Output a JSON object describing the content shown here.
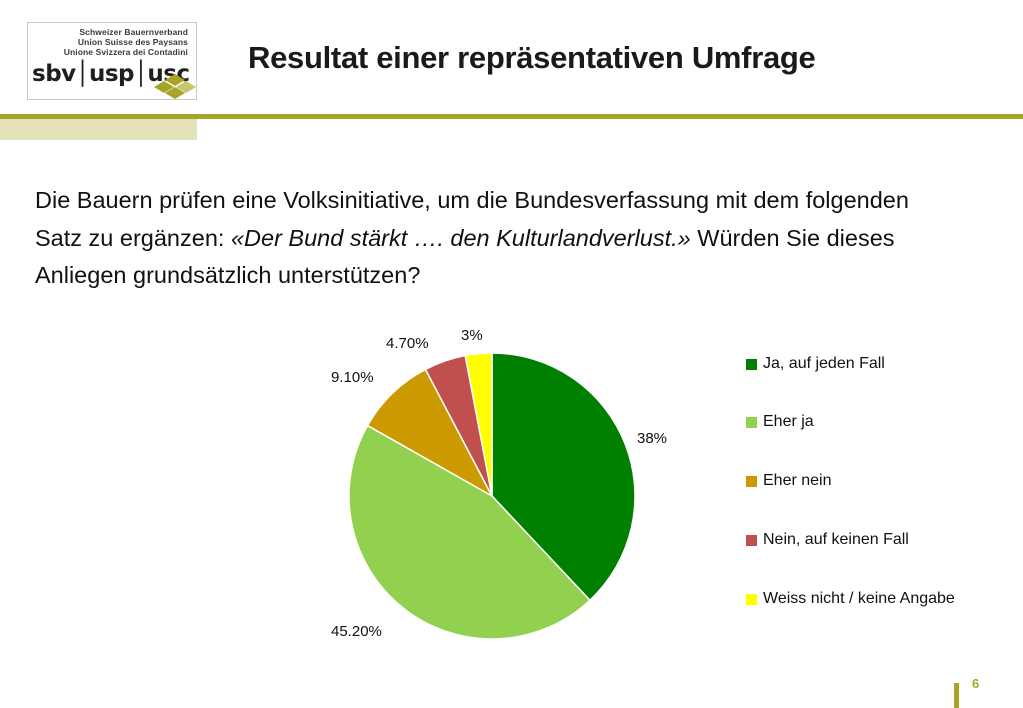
{
  "logo": {
    "org_de": "Schweizer Bauernverband",
    "org_fr": "Union Suisse des Paysans",
    "org_it": "Unione Svizzera dei Contadini",
    "wordmark": "sbv│usp│usc"
  },
  "slide": {
    "title": "Resultat einer repräsentativen Umfrage",
    "question_part1": "Die Bauern prüfen eine Volksinitiative, um die Bundesverfassung mit dem folgenden Satz zu ergänzen: ",
    "question_quote": "«Der Bund stärkt …. den Kulturlandverlust.»",
    "question_part2": " Würden Sie dieses Anliegen grundsätzlich unterstützen?",
    "page_number": "6"
  },
  "colors": {
    "accent": "#a7a527",
    "accent_light": "#e3e2b8"
  },
  "chart_data": {
    "type": "pie",
    "title": "",
    "start_angle_deg": 0,
    "direction": "clockwise",
    "legend_position": "right",
    "slices": [
      {
        "label": "Ja, auf jeden Fall",
        "value": 38.0,
        "display": "38%",
        "color": "#008000"
      },
      {
        "label": "Eher ja",
        "value": 45.2,
        "display": "45.20%",
        "color": "#92d050"
      },
      {
        "label": "Eher nein",
        "value": 9.1,
        "display": "9.10%",
        "color": "#cc9900"
      },
      {
        "label": "Nein, auf keinen Fall",
        "value": 4.7,
        "display": "4.70%",
        "color": "#c0504d"
      },
      {
        "label": "Weiss nicht / keine Angabe",
        "value": 3.0,
        "display": "3%",
        "color": "#ffff00"
      }
    ]
  }
}
